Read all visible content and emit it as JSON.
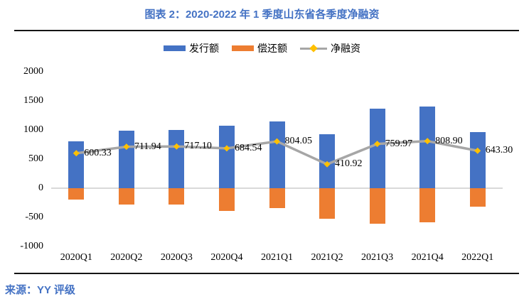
{
  "header": {
    "title": "图表 2：2020-2022 年 1 季度山东省各季度净融资"
  },
  "legend": {
    "issuance": "发行额",
    "repayment": "偿还额",
    "net": "净融资"
  },
  "footer": {
    "source": "来源：YY 评级"
  },
  "colors": {
    "accent_text": "#4472C4",
    "issuance_bar": "#4472C4",
    "repayment_bar": "#ED7D31",
    "net_line": "#A6A6A6",
    "net_marker": "#FFC000",
    "zero_axis": "#D9D9D9",
    "rule": "#151515"
  },
  "chart_data": {
    "type": "bar",
    "subtype": "bar-line-combo",
    "title": "图表 2：2020-2022 年 1 季度山东省各季度净融资",
    "categories": [
      "2020Q1",
      "2020Q2",
      "2020Q3",
      "2020Q4",
      "2021Q1",
      "2021Q2",
      "2021Q3",
      "2021Q4",
      "2022Q1"
    ],
    "series": [
      {
        "name": "发行额",
        "type": "bar",
        "color": "#4472C4",
        "values": [
          800,
          990,
          1000,
          1070,
          1145,
          930,
          1365,
          1400,
          965
        ]
      },
      {
        "name": "偿还额",
        "type": "bar",
        "color": "#ED7D31",
        "values": [
          -199.67,
          -278.06,
          -282.9,
          -385.46,
          -340.95,
          -519.08,
          -605.03,
          -591.1,
          -321.7
        ]
      },
      {
        "name": "净融资",
        "type": "line",
        "color": "#A6A6A6",
        "marker": "diamond",
        "marker_color": "#FFC000",
        "values": [
          600.33,
          711.94,
          717.1,
          684.54,
          804.05,
          410.92,
          759.97,
          808.9,
          643.3
        ],
        "labels": [
          "600.33",
          "711.94",
          "717.10",
          "684.54",
          "804.05",
          "410.92",
          "759.97",
          "808.90",
          "643.30"
        ]
      }
    ],
    "ylim": [
      -1000,
      2000
    ],
    "ytick_step": 500,
    "yticks": [
      2000,
      1500,
      1000,
      500,
      0,
      -500,
      -1000
    ],
    "grid": false,
    "legend_position": "top-center",
    "source": "来源：YY 评级"
  }
}
